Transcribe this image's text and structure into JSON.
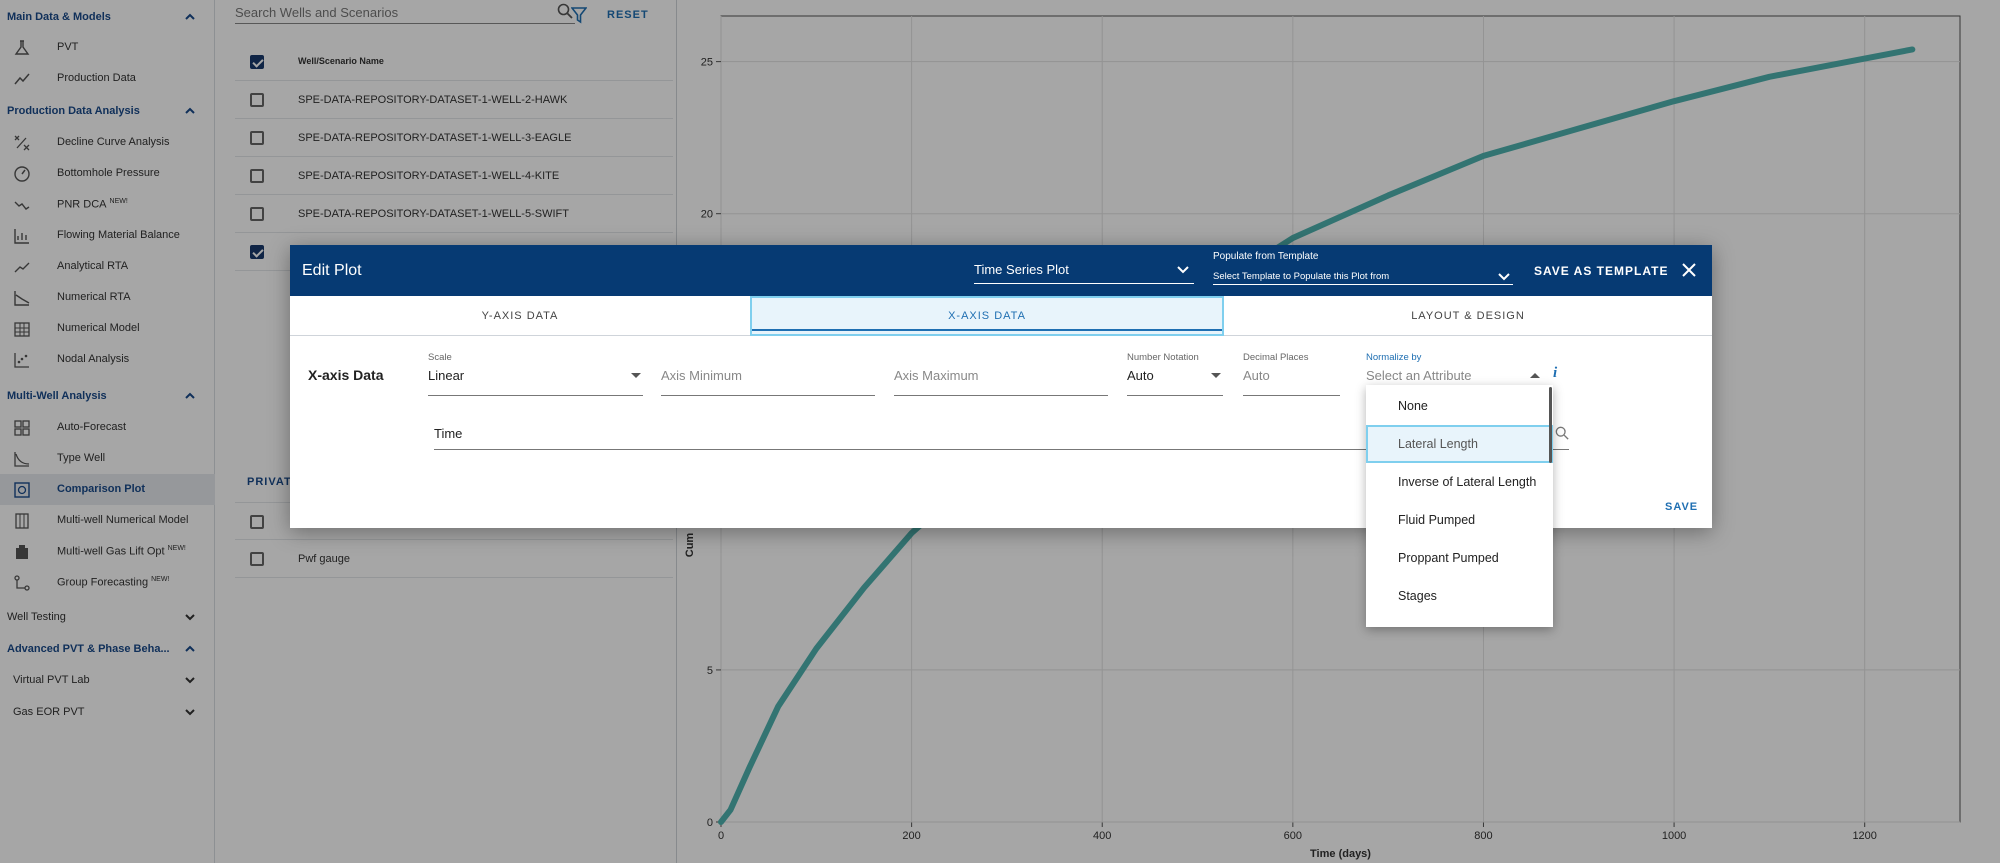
{
  "sidebar": {
    "sections": [
      {
        "label": "Main Data & Models"
      },
      {
        "label": "Production Data Analysis"
      },
      {
        "label": "Multi-Well Analysis"
      },
      {
        "label": "Well Testing"
      },
      {
        "label": "Advanced PVT & Phase Beha..."
      },
      {
        "label": "Virtual PVT Lab"
      },
      {
        "label": "Gas EOR PVT"
      }
    ],
    "items": [
      {
        "label": "PVT",
        "icon": "flask-icon"
      },
      {
        "label": "Production Data",
        "icon": "trend-line-icon"
      },
      {
        "label": "Decline Curve Analysis",
        "icon": "scatter-cross-icon"
      },
      {
        "label": "Bottomhole Pressure",
        "icon": "gauge-icon"
      },
      {
        "label": "PNR DCA",
        "badge": "NEW!",
        "icon": "wave-icon"
      },
      {
        "label": "Flowing Material Balance",
        "icon": "bar-chart-icon"
      },
      {
        "label": "Analytical RTA",
        "icon": "line-chart-icon"
      },
      {
        "label": "Numerical RTA",
        "icon": "area-chart-icon"
      },
      {
        "label": "Numerical Model",
        "icon": "grid-building-icon"
      },
      {
        "label": "Nodal Analysis",
        "icon": "dots-chart-icon"
      },
      {
        "label": "Auto-Forecast",
        "icon": "grid-icon"
      },
      {
        "label": "Type Well",
        "icon": "curve-icon"
      },
      {
        "label": "Comparison Plot",
        "icon": "compare-icon"
      },
      {
        "label": "Multi-well Numerical Model",
        "icon": "columns-icon"
      },
      {
        "label": "Multi-well Gas Lift Opt",
        "badge": "NEW!",
        "icon": "building-icon"
      },
      {
        "label": "Group Forecasting",
        "badge": "NEW!",
        "icon": "hierarchy-icon"
      }
    ]
  },
  "wells": {
    "search_placeholder": "Search Wells and Scenarios",
    "reset_label": "RESET",
    "header": "Well/Scenario Name",
    "rows": [
      {
        "name": "SPE-DATA-REPOSITORY-DATASET-1-WELL-2-HAWK",
        "checked": false
      },
      {
        "name": "SPE-DATA-REPOSITORY-DATASET-1-WELL-3-EAGLE",
        "checked": false
      },
      {
        "name": "SPE-DATA-REPOSITORY-DATASET-1-WELL-4-KITE",
        "checked": false
      },
      {
        "name": "SPE-DATA-REPOSITORY-DATASET-1-WELL-5-SWIFT",
        "checked": false
      },
      {
        "name": "",
        "checked": true
      }
    ],
    "private_label": "PRIVAT",
    "private_rows": [
      {
        "name": "",
        "checked": false
      },
      {
        "name": "Pwf gauge",
        "checked": false
      }
    ]
  },
  "chart_data": {
    "type": "line",
    "xlabel": "Time (days)",
    "ylabel": "Cum",
    "xlim": [
      0,
      1300
    ],
    "ylim": [
      0,
      26.5
    ],
    "x_ticks": [
      0,
      200,
      400,
      600,
      800,
      1000,
      1200
    ],
    "y_ticks": [
      0,
      5,
      20,
      25
    ],
    "grid": true,
    "color": "#4fb3b0",
    "series": [
      {
        "x": [
          0,
          10,
          30,
          60,
          100,
          150,
          200,
          300,
          400,
          500,
          600,
          700,
          800,
          900,
          1000,
          1100,
          1200,
          1250
        ],
        "y": [
          0,
          0.4,
          1.8,
          3.8,
          5.7,
          7.7,
          9.5,
          12.3,
          14.8,
          17.2,
          19.2,
          20.6,
          21.9,
          22.8,
          23.7,
          24.5,
          25.1,
          25.4
        ]
      }
    ]
  },
  "dialog": {
    "title": "Edit Plot",
    "plot_type": "Time Series Plot",
    "template_label": "Populate from Template",
    "template_placeholder": "Select Template to Populate this Plot from",
    "save_template_label": "SAVE AS TEMPLATE",
    "tabs": [
      "Y-AXIS DATA",
      "X-AXIS DATA",
      "LAYOUT & DESIGN"
    ],
    "active_tab": "X-AXIS DATA",
    "section_label": "X-axis Data",
    "scale_label": "Scale",
    "scale_value": "Linear",
    "axis_min_placeholder": "Axis Minimum",
    "axis_max_placeholder": "Axis Maximum",
    "notation_label": "Number Notation",
    "notation_value": "Auto",
    "decimal_label": "Decimal Places",
    "decimal_placeholder": "Auto",
    "normalize_label": "Normalize by",
    "normalize_placeholder": "Select an Attribute",
    "info_icon": "i",
    "time_field": "Time",
    "save_label": "SAVE"
  },
  "dropdown": {
    "options": [
      "None",
      "Lateral Length",
      "Inverse of Lateral Length",
      "Fluid Pumped",
      "Proppant Pumped",
      "Stages"
    ],
    "highlighted": "Lateral Length"
  },
  "colors": {
    "header": "#063a73",
    "accent": "#1f6fb2",
    "highlight_border": "#7fcfee",
    "series": "#4fb3b0"
  }
}
